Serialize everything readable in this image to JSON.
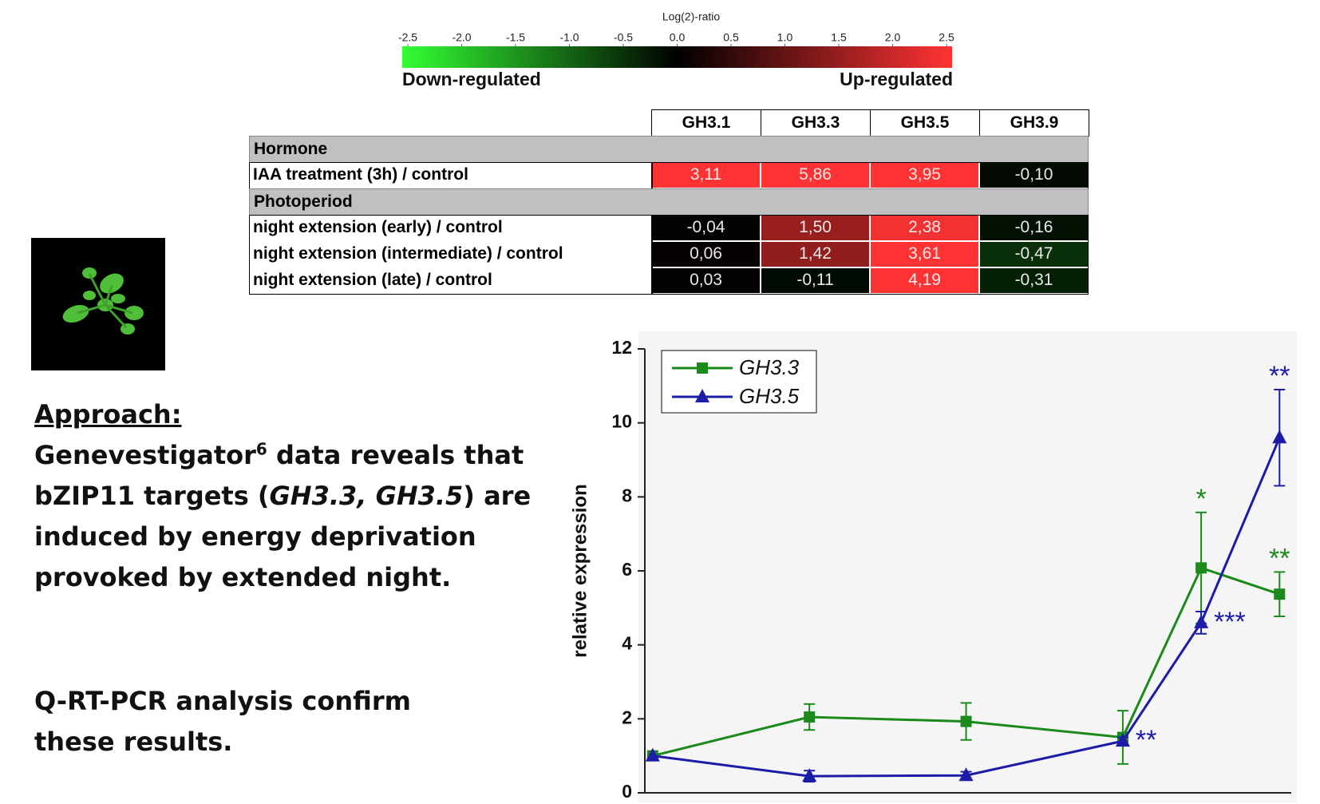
{
  "colorbar": {
    "title": "Log(2)-ratio",
    "lim": [
      -2.5,
      2.5
    ],
    "ticks": [
      -2.5,
      {
        "value": -2,
        "label": "-2.0"
      },
      -1.5,
      {
        "value": -1,
        "label": "-1.0"
      },
      -0.5,
      {
        "value": 0,
        "label": "0.0"
      },
      0.5,
      {
        "value": 1,
        "label": "1.0"
      },
      1.5,
      {
        "value": 2,
        "label": "2.0"
      },
      2.5
    ],
    "colors": [
      "#33ff33",
      "#000000",
      "#ff3333"
    ],
    "low_label": "Down-regulated",
    "high_label": "Up-regulated"
  },
  "table": {
    "columns": [
      "GH3.1",
      "GH3.3",
      "GH3.5",
      "GH3.9"
    ],
    "sections": [
      {
        "title": "Hormone",
        "rows": [
          {
            "label": "IAA treatment (3h) / control",
            "cells": [
              {
                "value": 3.11,
                "label": "3,11"
              },
              {
                "value": 5.86,
                "label": "5,86"
              },
              {
                "value": 3.95,
                "label": "3,95"
              },
              {
                "value": -0.1,
                "label": "-0,10"
              }
            ]
          }
        ]
      },
      {
        "title": "Photoperiod",
        "rows": [
          {
            "label": "night extension (early) / control",
            "cells": [
              {
                "value": -0.04,
                "label": "-0,04"
              },
              {
                "value": 1.5,
                "label": "1,50"
              },
              {
                "value": 2.38,
                "label": "2,38"
              },
              {
                "value": -0.16,
                "label": "-0,16"
              }
            ]
          },
          {
            "label": "night extension (intermediate) / control",
            "cells": [
              {
                "value": 0.06,
                "label": "0,06"
              },
              {
                "value": 1.42,
                "label": "1,42"
              },
              {
                "value": 3.61,
                "label": "3,61"
              },
              {
                "value": -0.47,
                "label": "-0,47"
              }
            ]
          },
          {
            "label": "night extension (late) / control",
            "cells": [
              {
                "value": 0.03,
                "label": "0,03"
              },
              {
                "value": -0.11,
                "label": "-0,11"
              },
              {
                "value": 4.19,
                "label": "4,19"
              },
              {
                "value": -0.31,
                "label": "-0,31"
              }
            ]
          }
        ]
      }
    ]
  },
  "approach": {
    "heading": "Approach:",
    "body": [
      "Genevestigator",
      "6",
      " data reveals that",
      "bZIP11 targets (",
      "GH3.3, GH3.5",
      ") are",
      "induced by energy deprivation",
      "provoked by extended night."
    ],
    "conclusion": [
      "Q-RT-PCR analysis confirm",
      "these results."
    ]
  },
  "chart_data": {
    "type": "line",
    "y_label": "relative expression",
    "x": [
      0,
      2,
      4,
      6,
      7,
      8
    ],
    "xlim": [
      -0.1,
      8.15
    ],
    "ylim": [
      0,
      12
    ],
    "yticks": [
      0,
      2,
      4,
      6,
      8,
      10,
      12
    ],
    "series": [
      {
        "name": "GH3.3",
        "color": "#1a8a1a",
        "marker": "square",
        "values": [
          1.0,
          2.05,
          1.93,
          1.5,
          6.08,
          5.37
        ],
        "errors": [
          null,
          0.35,
          0.5,
          0.72,
          1.5,
          0.6
        ],
        "annotations": [
          null,
          null,
          null,
          null,
          "*",
          "**"
        ]
      },
      {
        "name": "GH3.5",
        "color": "#1c1ca8",
        "marker": "triangle",
        "values": [
          1.0,
          0.45,
          0.47,
          1.4,
          4.6,
          9.6
        ],
        "errors": [
          null,
          0.15,
          0.1,
          0.1,
          0.3,
          1.3
        ],
        "annotations": [
          null,
          null,
          null,
          "**",
          "***",
          "**"
        ]
      }
    ]
  }
}
